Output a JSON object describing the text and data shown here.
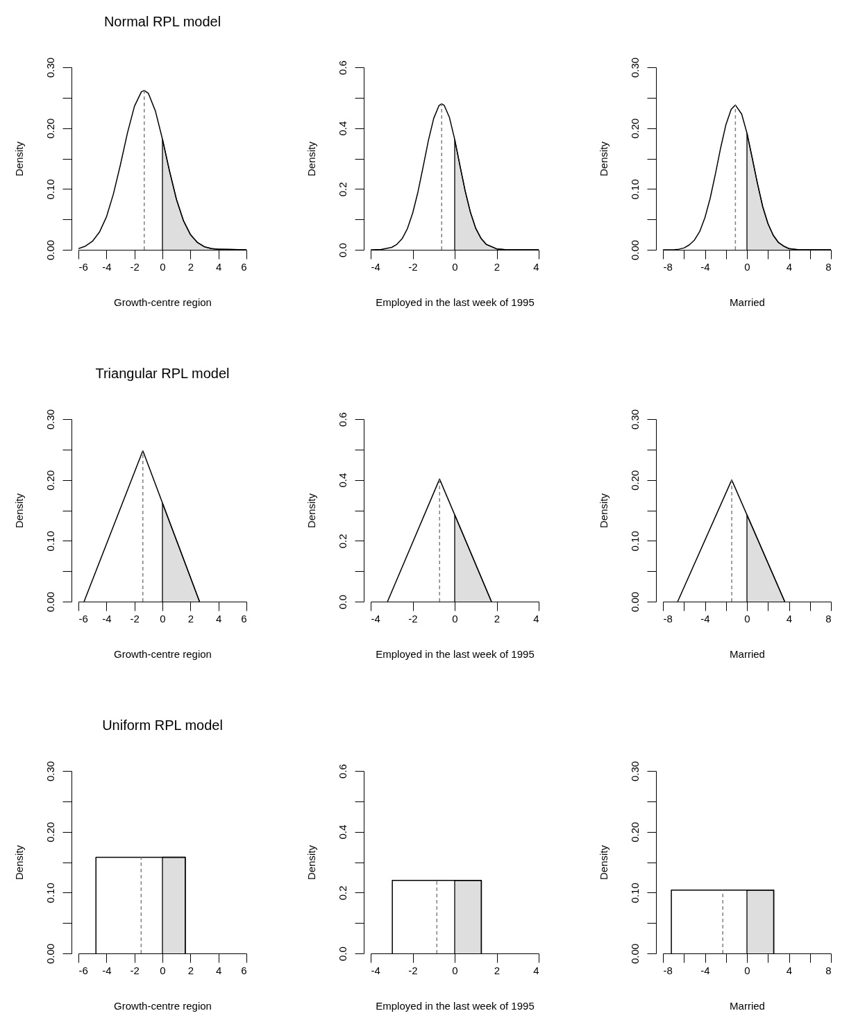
{
  "chart_data": [
    {
      "type": "line",
      "title": "Normal RPL model",
      "xlabel": "Growth-centre region",
      "ylabel": "Density",
      "xlim": [
        -6,
        6
      ],
      "ylim": [
        0,
        0.3
      ],
      "xticks": [
        -6,
        -4,
        -2,
        0,
        2,
        4,
        6
      ],
      "yticks": [
        {
          "value": 0,
          "label": "0.00"
        },
        {
          "value": 0.05,
          "label": null
        },
        {
          "value": 0.1,
          "label": "0.10"
        },
        {
          "value": 0.15,
          "label": null
        },
        {
          "value": 0.2,
          "label": "0.20"
        },
        {
          "value": 0.25,
          "label": null
        },
        {
          "value": 0.3,
          "label": "0.30"
        }
      ],
      "series": [
        {
          "type": "area",
          "color": "#dedede",
          "x": [
            0,
            0,
            0.5,
            1,
            1.5,
            2,
            2.5,
            3,
            3.5,
            4,
            6
          ],
          "values": [
            0,
            0.182,
            0.13,
            0.083,
            0.048,
            0.025,
            0.012,
            0.005,
            0.002,
            0.001,
            0
          ]
        },
        {
          "type": "line",
          "color": "#000000",
          "x": [
            -6,
            -5.5,
            -5,
            -4.5,
            -4,
            -3.5,
            -3,
            -2.5,
            -2,
            -1.5,
            -1.3,
            -1,
            -0.5,
            0,
            0.5,
            1,
            1.5,
            2,
            2.5,
            3,
            3.5,
            4,
            6
          ],
          "values": [
            0.002,
            0.006,
            0.014,
            0.029,
            0.054,
            0.092,
            0.14,
            0.192,
            0.236,
            0.26,
            0.262,
            0.257,
            0.228,
            0.182,
            0.13,
            0.083,
            0.048,
            0.025,
            0.012,
            0.005,
            0.002,
            0.001,
            0
          ]
        },
        {
          "type": "line",
          "color": "#808080",
          "line_style": "dashed",
          "x": [
            -1.3,
            -1.3
          ],
          "values": [
            0,
            0.262
          ]
        }
      ]
    },
    {
      "type": "line",
      "xlabel": "Employed in the last week of 1995",
      "ylabel": "Density",
      "xlim": [
        -4,
        4
      ],
      "ylim": [
        0,
        0.6
      ],
      "xticks": [
        -4,
        -2,
        0,
        2,
        4
      ],
      "yticks": [
        {
          "value": 0,
          "label": "0.0"
        },
        {
          "value": 0.1,
          "label": null
        },
        {
          "value": 0.2,
          "label": "0.2"
        },
        {
          "value": 0.3,
          "label": null
        },
        {
          "value": 0.4,
          "label": "0.4"
        },
        {
          "value": 0.5,
          "label": null
        },
        {
          "value": 0.6,
          "label": "0.6"
        }
      ],
      "series": [
        {
          "type": "area",
          "color": "#dedede",
          "x": [
            0,
            0,
            0.25,
            0.5,
            0.75,
            1,
            1.25,
            1.5,
            2,
            2.5,
            4
          ],
          "values": [
            0,
            0.363,
            0.277,
            0.193,
            0.123,
            0.071,
            0.038,
            0.018,
            0.003,
            0,
            0
          ]
        },
        {
          "type": "line",
          "color": "#000000",
          "x": [
            -4,
            -3.5,
            -3,
            -2.75,
            -2.5,
            -2.25,
            -2,
            -1.75,
            -1.5,
            -1.25,
            -1,
            -0.75,
            -0.62,
            -0.5,
            -0.25,
            0,
            0.25,
            0.5,
            0.75,
            1,
            1.25,
            1.5,
            2,
            2.5,
            4
          ],
          "values": [
            0,
            0.001,
            0.008,
            0.018,
            0.037,
            0.07,
            0.121,
            0.19,
            0.274,
            0.36,
            0.432,
            0.474,
            0.48,
            0.475,
            0.435,
            0.363,
            0.277,
            0.193,
            0.123,
            0.071,
            0.038,
            0.018,
            0.003,
            0,
            0
          ]
        },
        {
          "type": "line",
          "color": "#808080",
          "line_style": "dashed",
          "x": [
            -0.62,
            -0.62
          ],
          "values": [
            0,
            0.48
          ]
        }
      ]
    },
    {
      "type": "line",
      "xlabel": "Married",
      "ylabel": "Density",
      "xlim": [
        -8,
        8
      ],
      "ylim": [
        0,
        0.3
      ],
      "xticks": [
        -8,
        {
          "value": -6,
          "label": null
        },
        -4,
        {
          "value": -2,
          "label": null
        },
        0,
        {
          "value": 2,
          "label": null
        },
        4,
        {
          "value": 6,
          "label": null
        },
        8
      ],
      "yticks": [
        {
          "value": 0,
          "label": "0.00"
        },
        {
          "value": 0.05,
          "label": null
        },
        {
          "value": 0.1,
          "label": "0.10"
        },
        {
          "value": 0.15,
          "label": null
        },
        {
          "value": 0.2,
          "label": "0.20"
        },
        {
          "value": 0.25,
          "label": null
        },
        {
          "value": 0.3,
          "label": "0.30"
        }
      ],
      "series": [
        {
          "type": "area",
          "color": "#dedede",
          "x": [
            0,
            0,
            0.5,
            1,
            1.5,
            2,
            2.5,
            3,
            3.5,
            4,
            4.5,
            5,
            8
          ],
          "values": [
            0,
            0.192,
            0.151,
            0.109,
            0.071,
            0.043,
            0.024,
            0.012,
            0.006,
            0.002,
            0.001,
            0,
            0
          ]
        },
        {
          "type": "line",
          "color": "#000000",
          "x": [
            -8,
            -7,
            -6.5,
            -6,
            -5.5,
            -5,
            -4.5,
            -4,
            -3.5,
            -3,
            -2.5,
            -2,
            -1.5,
            -1.1,
            -0.5,
            0,
            0.5,
            1,
            1.5,
            2,
            2.5,
            3,
            3.5,
            4,
            4.5,
            5,
            8
          ],
          "values": [
            0,
            0,
            0.001,
            0.003,
            0.008,
            0.016,
            0.03,
            0.053,
            0.085,
            0.125,
            0.168,
            0.206,
            0.231,
            0.238,
            0.223,
            0.192,
            0.151,
            0.109,
            0.071,
            0.043,
            0.024,
            0.012,
            0.006,
            0.002,
            0.001,
            0,
            0
          ]
        },
        {
          "type": "line",
          "color": "#808080",
          "line_style": "dashed",
          "x": [
            -1.1,
            -1.1
          ],
          "values": [
            0,
            0.238
          ]
        }
      ]
    },
    {
      "type": "line",
      "title": "Triangular RPL model",
      "xlabel": "Growth-centre region",
      "ylabel": "Density",
      "xlim": [
        -6,
        6
      ],
      "ylim": [
        0,
        0.3
      ],
      "xticks": [
        -6,
        -4,
        -2,
        0,
        2,
        4,
        6
      ],
      "yticks": [
        {
          "value": 0,
          "label": "0.00"
        },
        {
          "value": 0.05,
          "label": null
        },
        {
          "value": 0.1,
          "label": "0.10"
        },
        {
          "value": 0.15,
          "label": null
        },
        {
          "value": 0.2,
          "label": "0.20"
        },
        {
          "value": 0.25,
          "label": null
        },
        {
          "value": 0.3,
          "label": "0.30"
        }
      ],
      "series": [
        {
          "type": "area",
          "color": "#dedede",
          "x": [
            0,
            0,
            2.65
          ],
          "values": [
            0,
            0.162,
            0
          ]
        },
        {
          "type": "line",
          "color": "#000000",
          "x": [
            -5.6,
            -1.4,
            2.65
          ],
          "values": [
            0,
            0.248,
            0
          ]
        },
        {
          "type": "line",
          "color": "#808080",
          "line_style": "dashed",
          "x": [
            -1.4,
            -1.4
          ],
          "values": [
            0,
            0.248
          ]
        }
      ]
    },
    {
      "type": "line",
      "xlabel": "Employed in the last week of 1995",
      "ylabel": "Density",
      "xlim": [
        -4,
        4
      ],
      "ylim": [
        0,
        0.6
      ],
      "xticks": [
        -4,
        -2,
        0,
        2,
        4
      ],
      "yticks": [
        {
          "value": 0,
          "label": "0.0"
        },
        {
          "value": 0.1,
          "label": null
        },
        {
          "value": 0.2,
          "label": "0.2"
        },
        {
          "value": 0.3,
          "label": null
        },
        {
          "value": 0.4,
          "label": "0.4"
        },
        {
          "value": 0.5,
          "label": null
        },
        {
          "value": 0.6,
          "label": "0.6"
        }
      ],
      "series": [
        {
          "type": "area",
          "color": "#dedede",
          "x": [
            0,
            0,
            1.75
          ],
          "values": [
            0,
            0.286,
            0
          ]
        },
        {
          "type": "line",
          "color": "#000000",
          "x": [
            -3.2,
            -0.72,
            1.75
          ],
          "values": [
            0,
            0.403,
            0
          ]
        },
        {
          "type": "line",
          "color": "#808080",
          "line_style": "dashed",
          "x": [
            -0.72,
            -0.72
          ],
          "values": [
            0,
            0.403
          ]
        }
      ]
    },
    {
      "type": "line",
      "xlabel": "Married",
      "ylabel": "Density",
      "xlim": [
        -8,
        8
      ],
      "ylim": [
        0,
        0.3
      ],
      "xticks": [
        -8,
        {
          "value": -6,
          "label": null
        },
        -4,
        {
          "value": -2,
          "label": null
        },
        0,
        {
          "value": 2,
          "label": null
        },
        4,
        {
          "value": 6,
          "label": null
        },
        8
      ],
      "yticks": [
        {
          "value": 0,
          "label": "0.00"
        },
        {
          "value": 0.05,
          "label": null
        },
        {
          "value": 0.1,
          "label": "0.10"
        },
        {
          "value": 0.15,
          "label": null
        },
        {
          "value": 0.2,
          "label": "0.20"
        },
        {
          "value": 0.25,
          "label": null
        },
        {
          "value": 0.3,
          "label": "0.30"
        }
      ],
      "series": [
        {
          "type": "area",
          "color": "#dedede",
          "x": [
            0,
            0,
            3.6
          ],
          "values": [
            0,
            0.143,
            0
          ]
        },
        {
          "type": "line",
          "color": "#000000",
          "x": [
            -6.6,
            -1.45,
            3.6
          ],
          "values": [
            0,
            0.2,
            0
          ]
        },
        {
          "type": "line",
          "color": "#808080",
          "line_style": "dashed",
          "x": [
            -1.45,
            -1.45
          ],
          "values": [
            0,
            0.2
          ]
        }
      ]
    },
    {
      "type": "line",
      "title": "Uniform RPL model",
      "xlabel": "Growth-centre region",
      "ylabel": "Density",
      "xlim": [
        -6,
        6
      ],
      "ylim": [
        0,
        0.3
      ],
      "xticks": [
        -6,
        -4,
        -2,
        0,
        2,
        4,
        6
      ],
      "yticks": [
        {
          "value": 0,
          "label": "0.00"
        },
        {
          "value": 0.05,
          "label": null
        },
        {
          "value": 0.1,
          "label": "0.10"
        },
        {
          "value": 0.15,
          "label": null
        },
        {
          "value": 0.2,
          "label": "0.20"
        },
        {
          "value": 0.25,
          "label": null
        },
        {
          "value": 0.3,
          "label": "0.30"
        }
      ],
      "series": [
        {
          "type": "area",
          "color": "#dedede",
          "x": [
            0,
            0,
            1.63,
            1.63
          ],
          "values": [
            0,
            0.158,
            0.158,
            0
          ]
        },
        {
          "type": "line",
          "color": "#000000",
          "x": [
            -4.75,
            -4.75,
            1.63,
            1.63
          ],
          "values": [
            0,
            0.158,
            0.158,
            0
          ]
        },
        {
          "type": "line",
          "color": "#808080",
          "line_style": "dashed",
          "x": [
            -1.52,
            -1.52
          ],
          "values": [
            0,
            0.158
          ]
        }
      ]
    },
    {
      "type": "line",
      "xlabel": "Employed in the last week of 1995",
      "ylabel": "Density",
      "xlim": [
        -4,
        4
      ],
      "ylim": [
        0,
        0.6
      ],
      "xticks": [
        -4,
        -2,
        0,
        2,
        4
      ],
      "yticks": [
        {
          "value": 0,
          "label": "0.0"
        },
        {
          "value": 0.1,
          "label": null
        },
        {
          "value": 0.2,
          "label": "0.2"
        },
        {
          "value": 0.3,
          "label": null
        },
        {
          "value": 0.4,
          "label": "0.4"
        },
        {
          "value": 0.5,
          "label": null
        },
        {
          "value": 0.6,
          "label": "0.6"
        }
      ],
      "series": [
        {
          "type": "area",
          "color": "#dedede",
          "x": [
            0,
            0,
            1.27,
            1.27
          ],
          "values": [
            0,
            0.24,
            0.24,
            0
          ]
        },
        {
          "type": "line",
          "color": "#000000",
          "x": [
            -2.97,
            -2.97,
            1.27,
            1.27
          ],
          "values": [
            0,
            0.24,
            0.24,
            0
          ]
        },
        {
          "type": "line",
          "color": "#808080",
          "line_style": "dashed",
          "x": [
            -0.85,
            -0.85
          ],
          "values": [
            0,
            0.24
          ]
        }
      ]
    },
    {
      "type": "line",
      "xlabel": "Married",
      "ylabel": "Density",
      "xlim": [
        -8,
        8
      ],
      "ylim": [
        0,
        0.3
      ],
      "xticks": [
        -8,
        {
          "value": -6,
          "label": null
        },
        -4,
        {
          "value": -2,
          "label": null
        },
        0,
        {
          "value": 2,
          "label": null
        },
        4,
        {
          "value": 6,
          "label": null
        },
        8
      ],
      "yticks": [
        {
          "value": 0,
          "label": "0.00"
        },
        {
          "value": 0.05,
          "label": null
        },
        {
          "value": 0.1,
          "label": "0.10"
        },
        {
          "value": 0.15,
          "label": null
        },
        {
          "value": 0.2,
          "label": "0.20"
        },
        {
          "value": 0.25,
          "label": null
        },
        {
          "value": 0.3,
          "label": "0.30"
        }
      ],
      "series": [
        {
          "type": "area",
          "color": "#dedede",
          "x": [
            0,
            0,
            2.55,
            2.55
          ],
          "values": [
            0,
            0.104,
            0.104,
            0
          ]
        },
        {
          "type": "line",
          "color": "#000000",
          "x": [
            -7.2,
            -7.2,
            2.55,
            2.55
          ],
          "values": [
            0,
            0.104,
            0.104,
            0
          ]
        },
        {
          "type": "line",
          "color": "#808080",
          "line_style": "dashed",
          "x": [
            -2.3,
            -2.3
          ],
          "values": [
            0,
            0.104
          ]
        }
      ]
    }
  ]
}
